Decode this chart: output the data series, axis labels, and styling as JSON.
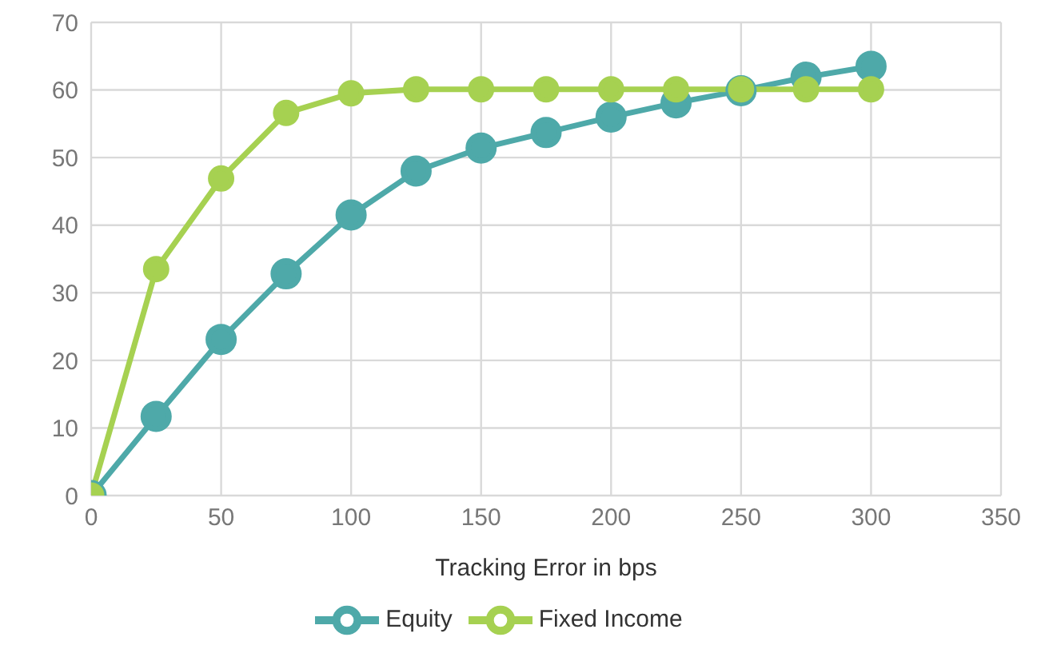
{
  "chart_data": {
    "type": "line",
    "xlabel": "Tracking Error in bps",
    "x": [
      0,
      25,
      50,
      75,
      100,
      125,
      150,
      175,
      200,
      225,
      250,
      275,
      300
    ],
    "series": [
      {
        "name": "Equity",
        "color": "#4ea9a9",
        "values": [
          0,
          11.7,
          23.1,
          32.8,
          41.5,
          48,
          51.4,
          53.7,
          56,
          58.1,
          59.9,
          61.9,
          63.5
        ]
      },
      {
        "name": "Fixed Income",
        "color": "#a6d151",
        "values": [
          0,
          33.5,
          46.9,
          56.6,
          59.5,
          60.1,
          60.1,
          60.1,
          60.1,
          60.1,
          60.1,
          60.1,
          60.1
        ]
      }
    ],
    "xlim": [
      0,
      350
    ],
    "xticks": [
      0,
      50,
      100,
      150,
      200,
      250,
      300,
      350
    ],
    "ylim": [
      0,
      70
    ],
    "yticks": [
      0,
      10,
      20,
      30,
      40,
      50,
      60,
      70
    ],
    "grid": true,
    "legend": "bottom",
    "marker": "circle",
    "line_style": "solid"
  }
}
